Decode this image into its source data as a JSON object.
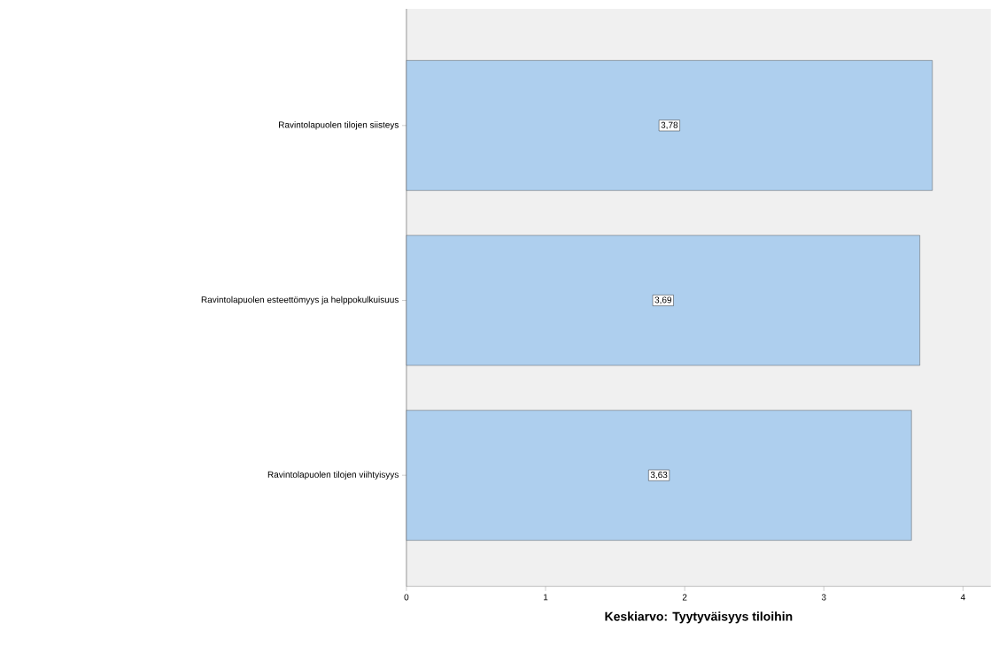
{
  "chart_data": {
    "type": "bar",
    "orientation": "horizontal",
    "xlabel": "Keskiarvo: Tyytyväisyys tiloihin",
    "categories": [
      "Ravintolapuolen tilojen siisteys",
      "Ravintolapuolen esteettömyys ja helppokulkuisuus",
      "Ravintolapuolen tilojen viihtyisyys"
    ],
    "values": [
      3.78,
      3.69,
      3.63
    ],
    "value_labels": [
      "3,78",
      "3,69",
      "3,63"
    ],
    "color": "#aecfee",
    "xlim": [
      0,
      4.2
    ],
    "xticks": [
      0,
      1,
      2,
      3,
      4
    ],
    "grid": false
  }
}
